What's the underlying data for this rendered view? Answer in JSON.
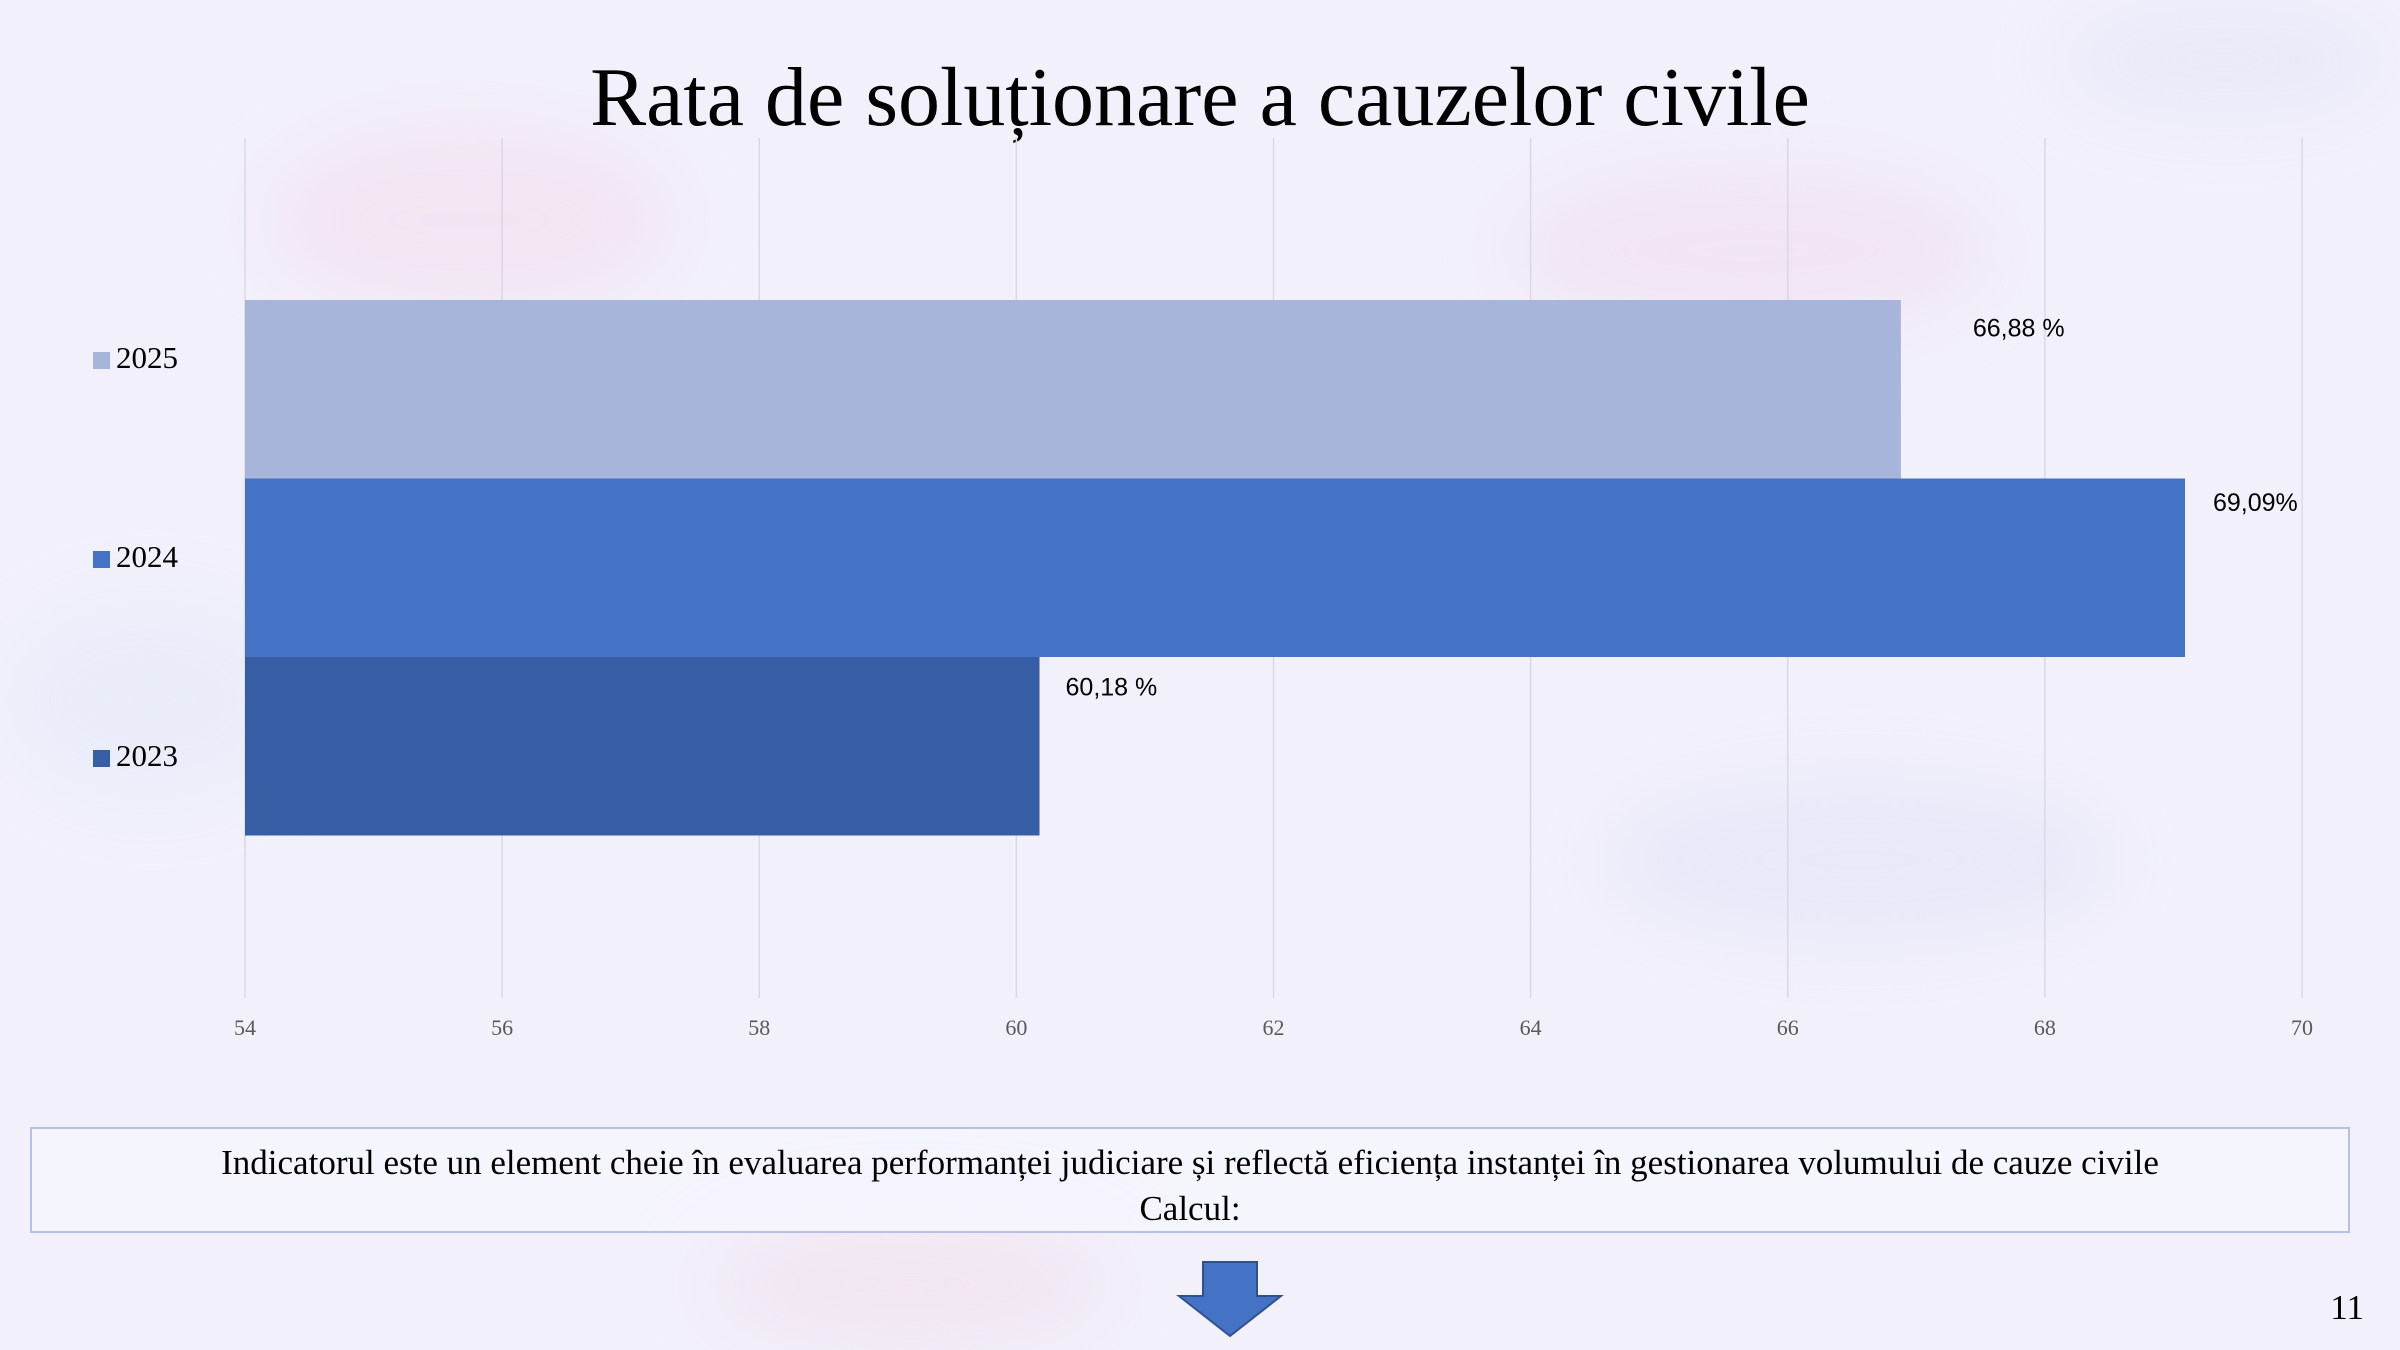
{
  "slide": {
    "title": "Rata de soluționare a cauzelor civile",
    "info_line_1": "Indicatorul este un element cheie în evaluarea performanței judiciare și reflectă eficiența instanței în gestionarea volumului de cauze civile",
    "info_line_2": "Calcul:",
    "page_number": "11"
  },
  "chart_data": {
    "type": "bar",
    "orientation": "horizontal",
    "title": "",
    "xlabel": "",
    "ylabel": "",
    "xlim": [
      54,
      70
    ],
    "x_ticks": [
      54,
      56,
      58,
      60,
      62,
      64,
      66,
      68,
      70
    ],
    "grid": true,
    "legend_placement": "left",
    "series": [
      {
        "name": "2025",
        "value": 66.88,
        "label": "66,88 %",
        "color": "#a7b5da"
      },
      {
        "name": "2024",
        "value": 69.09,
        "label": "69,09%",
        "color": "#4472c4"
      },
      {
        "name": "2023",
        "value": 60.18,
        "label": "60,18 %",
        "color": "#375ea4"
      }
    ]
  },
  "colors": {
    "background": "#f2f1fb",
    "gridline": "#d9d9e6",
    "arrow": "#4472c4",
    "box_border": "#b4c0e6"
  },
  "icons": {
    "arrow": "arrow-down-icon"
  }
}
